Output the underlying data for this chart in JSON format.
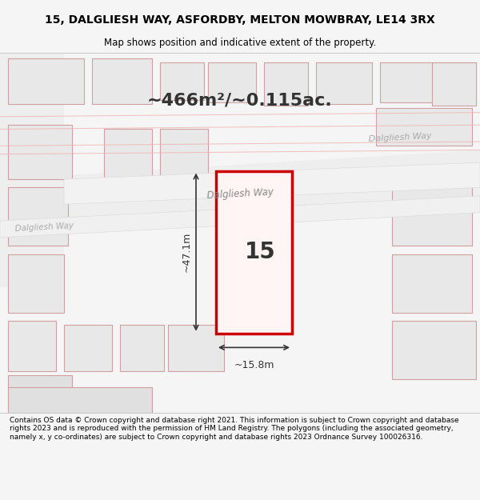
{
  "title_line1": "15, DALGLIESH WAY, ASFORDBY, MELTON MOWBRAY, LE14 3RX",
  "title_line2": "Map shows position and indicative extent of the property.",
  "area_text": "~466m²/~0.115ac.",
  "number_label": "15",
  "dim_width": "~15.8m",
  "dim_height": "~47.1m",
  "road_label1": "Dalgliesh Way",
  "road_label2": "Dalgliesh Way",
  "road_label3": "Dalgliesh Way",
  "footer_text": "Contains OS data © Crown copyright and database right 2021. This information is subject to Crown copyright and database rights 2023 and is reproduced with the permission of HM Land Registry. The polygons (including the associated geometry, namely x, y co-ordinates) are subject to Crown copyright and database rights 2023 Ordnance Survey 100026316.",
  "bg_color": "#f5f5f5",
  "map_bg": "#ffffff",
  "plot_color_fill": "#ffffff",
  "plot_color_edge": "#cc0000",
  "building_fill": "#d8d8d8",
  "road_color": "#f0f0f0",
  "street_line_color": "#e8c0c0",
  "footer_bg": "#ffffff",
  "title_bg": "#ffffff"
}
